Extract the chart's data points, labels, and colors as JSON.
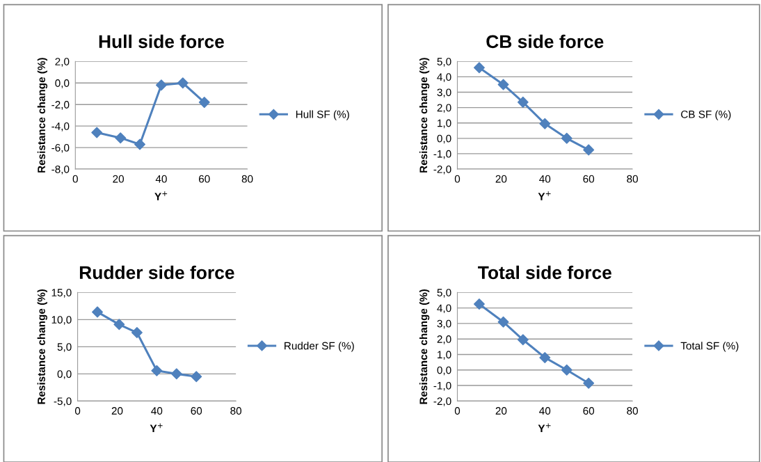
{
  "chart_data": [
    {
      "type": "line",
      "title": "Hull side force",
      "xlabel": "Y$^{+}$",
      "ylabel": "Resistance change (%)",
      "x": [
        10,
        21,
        30,
        40,
        50,
        60
      ],
      "series": [
        {
          "name": "Hull SF (%)",
          "color": "#4f81bd",
          "values": [
            -4.6,
            -5.1,
            -5.7,
            -0.2,
            0.0,
            -1.8
          ]
        }
      ],
      "xlim": [
        0,
        80
      ],
      "xticks": [
        0,
        20,
        40,
        60,
        80
      ],
      "ylim": [
        -8,
        2
      ],
      "yticks": [
        {
          "value": -8,
          "label": "-8,0"
        },
        {
          "value": -6,
          "label": "-6,0"
        },
        {
          "value": -4,
          "label": "-4,0"
        },
        {
          "value": -2,
          "label": "-2,0"
        },
        {
          "value": 0,
          "label": "0,0"
        },
        {
          "value": 2,
          "label": "2,0"
        }
      ],
      "grid": "y",
      "legend": "right",
      "marker": "diamond",
      "line_style": "solid"
    },
    {
      "type": "line",
      "title": "CB side force",
      "xlabel": "Y$^{+}$",
      "ylabel": "Resistance change (%)",
      "x": [
        10,
        21,
        30,
        40,
        50,
        60
      ],
      "series": [
        {
          "name": "CB SF (%)",
          "color": "#4f81bd",
          "values": [
            4.6,
            3.5,
            2.35,
            0.95,
            0.0,
            -0.75
          ]
        }
      ],
      "xlim": [
        0,
        80
      ],
      "xticks": [
        0,
        20,
        40,
        60,
        80
      ],
      "ylim": [
        -2,
        5
      ],
      "yticks": [
        {
          "value": -2,
          "label": "-2,0"
        },
        {
          "value": -1,
          "label": "-1,0"
        },
        {
          "value": 0,
          "label": "0,0"
        },
        {
          "value": 1,
          "label": "1,0"
        },
        {
          "value": 2,
          "label": "2,0"
        },
        {
          "value": 3,
          "label": "3,0"
        },
        {
          "value": 4,
          "label": "4,0"
        },
        {
          "value": 5,
          "label": "5,0"
        }
      ],
      "grid": "y",
      "legend": "right",
      "marker": "diamond",
      "line_style": "solid"
    },
    {
      "type": "line",
      "title": "Rudder side force",
      "xlabel": "Y$^{+}$",
      "ylabel": "Resistance change (%)",
      "x": [
        10,
        21,
        30,
        40,
        50,
        60
      ],
      "series": [
        {
          "name": "Rudder SF (%)",
          "color": "#4f81bd",
          "values": [
            11.4,
            9.1,
            7.6,
            0.6,
            0.0,
            -0.5
          ]
        }
      ],
      "xlim": [
        0,
        80
      ],
      "xticks": [
        0,
        20,
        40,
        60,
        80
      ],
      "ylim": [
        -5,
        15
      ],
      "yticks": [
        {
          "value": -5,
          "label": "-5,0"
        },
        {
          "value": 0,
          "label": "0,0"
        },
        {
          "value": 5,
          "label": "5,0"
        },
        {
          "value": 10,
          "label": "10,0"
        },
        {
          "value": 15,
          "label": "15,0"
        }
      ],
      "grid": "y",
      "legend": "right",
      "marker": "diamond",
      "line_style": "solid"
    },
    {
      "type": "line",
      "title": "Total side force",
      "xlabel": "Y$^{+}$",
      "ylabel": "Resistance change (%)",
      "x": [
        10,
        21,
        30,
        40,
        50,
        60
      ],
      "series": [
        {
          "name": "Total SF (%)",
          "color": "#4f81bd",
          "values": [
            4.25,
            3.1,
            1.95,
            0.8,
            0.0,
            -0.85
          ]
        }
      ],
      "xlim": [
        0,
        80
      ],
      "xticks": [
        0,
        20,
        40,
        60,
        80
      ],
      "ylim": [
        -2,
        5
      ],
      "yticks": [
        {
          "value": -2,
          "label": "-2,0"
        },
        {
          "value": -1,
          "label": "-1,0"
        },
        {
          "value": 0,
          "label": "0,0"
        },
        {
          "value": 1,
          "label": "1,0"
        },
        {
          "value": 2,
          "label": "2,0"
        },
        {
          "value": 3,
          "label": "3,0"
        },
        {
          "value": 4,
          "label": "4,0"
        },
        {
          "value": 5,
          "label": "5,0"
        }
      ],
      "grid": "y",
      "legend": "right",
      "marker": "diamond",
      "line_style": "solid"
    }
  ]
}
